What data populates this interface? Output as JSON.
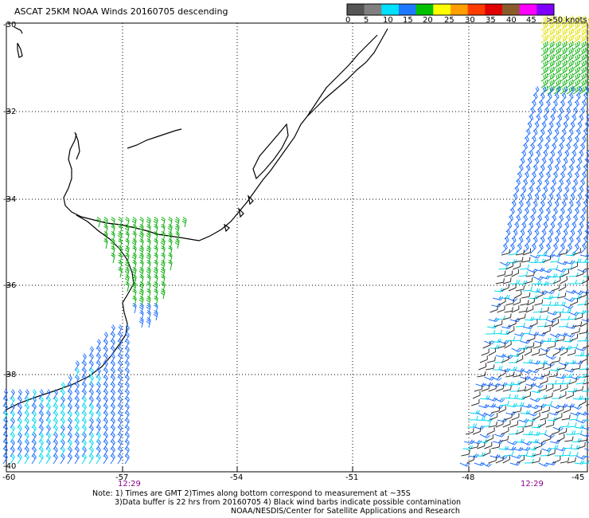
{
  "title": "ASCAT 25KM NOAA Winds 20160705 descending",
  "legend": {
    "labels": [
      "0",
      "5",
      "10",
      "15",
      "20",
      "25",
      "30",
      "35",
      "40",
      "45",
      ">50 knots"
    ],
    "colors": [
      "#555555",
      "#808080",
      "#00e0ff",
      "#1e78ff",
      "#00c000",
      "#ffff00",
      "#ffa000",
      "#ff3c00",
      "#e00000",
      "#8b5a2b",
      "#ff00ff",
      "#8000ff"
    ]
  },
  "axes": {
    "lat_labels": [
      "-30",
      "-32",
      "-34",
      "-36",
      "-38",
      "-40"
    ],
    "lon_labels": [
      "-60",
      "-57",
      "-54",
      "-51",
      "-48",
      "-45"
    ]
  },
  "times": [
    "12:29",
    "12:29"
  ],
  "notes": [
    "Note: 1) Times are GMT 2)Times along bottom correspond to measurement at ~35S",
    "3)Data buffer is 22 hrs from 20160705 4) Black wind barbs indicate possible contamination",
    "NOAA/NESDIS/Center for Satellite Applications and Research"
  ],
  "colors": {
    "coast": "#000000",
    "grid": "#000000",
    "calm": "#303030",
    "light": "#00d8f0",
    "moderate": "#2070ff",
    "fresh": "#10b010",
    "strong": "#e0e000",
    "time_text": "#8a008a"
  }
}
